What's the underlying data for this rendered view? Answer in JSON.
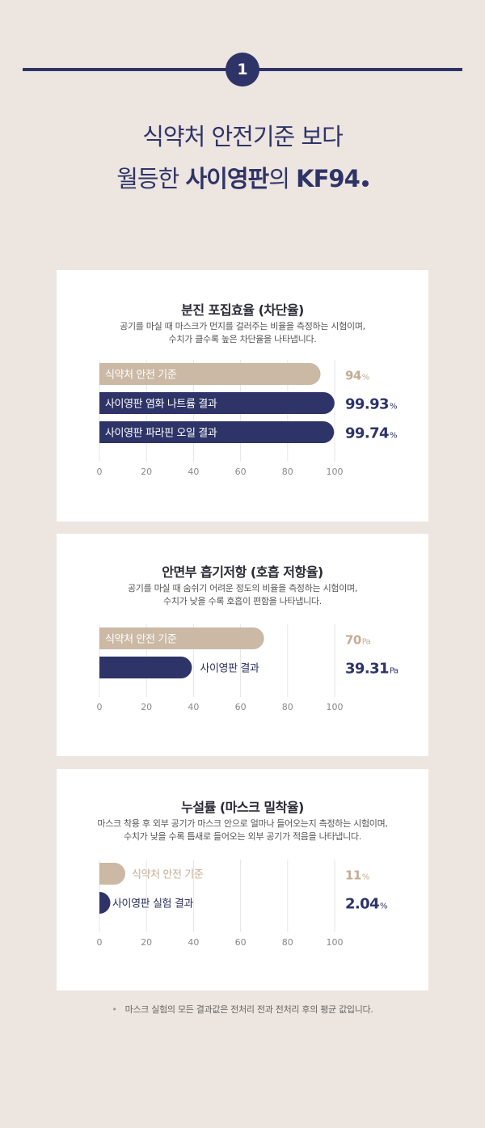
{
  "badge": "1",
  "headline": {
    "line1": "식약처 안전기준 보다",
    "line2_pre": "월등한 ",
    "line2_brand": "사이영판",
    "line2_mid": "의 ",
    "line2_product": "KF94"
  },
  "colors": {
    "navy": "#2e3468",
    "beige": "#cbb9a5",
    "grid": "#e2e2e2",
    "bg": "#ede5df"
  },
  "charts": [
    {
      "title": "분진 포집효율 (차단율)",
      "desc1": "공기를 마실 때 마스크가 먼지를 걸러주는 비율을 측정하는 시험이며,",
      "desc2": "수치가 클수록 높은 차단율을 나타냅니다."
    },
    {
      "title": "안면부 흡기저항 (호흡 저항율)",
      "desc1": "공기를 마실 때 숨쉬기 어려운 정도의 비율을 측정하는 시험이며,",
      "desc2": "수치가 낮을 수록 호흡이 편함을 나타냅니다."
    },
    {
      "title": "누설률 (마스크 밀착율)",
      "desc1": "마스크 착용 후 외부 공기가 마스크 안으로 얼마나 들어오는지 측정하는 시험이며,",
      "desc2": "수치가 낮을 수록 틈새로 들어오는 외부 공기가 적음을 나타냅니다."
    }
  ],
  "chart_data": [
    {
      "type": "bar",
      "title": "분진 포집효율 (차단율)",
      "xlim": [
        0,
        100
      ],
      "ticks": [
        "0",
        "20",
        "40",
        "60",
        "80",
        "100"
      ],
      "grid": true,
      "bars": [
        {
          "label": "식약처 안전 기준",
          "value": 94,
          "display": "94",
          "unit": "%",
          "color": "beige"
        },
        {
          "label": "사이영판 염화 나트륨 결과",
          "value": 99.93,
          "display": "99.93",
          "unit": "%",
          "color": "navy"
        },
        {
          "label": "사이영판 파라핀 오일 결과",
          "value": 99.74,
          "display": "99.74",
          "unit": "%",
          "color": "navy"
        }
      ]
    },
    {
      "type": "bar",
      "title": "안면부 흡기저항 (호흡 저항율)",
      "xlim": [
        0,
        100
      ],
      "ticks": [
        "0",
        "20",
        "40",
        "60",
        "80",
        "100"
      ],
      "grid": true,
      "bars": [
        {
          "label": "식약처 안전 기준",
          "value": 70,
          "display": "70",
          "unit": "Pa",
          "color": "beige"
        },
        {
          "label": "사이영판 결과",
          "value": 39.31,
          "display": "39.31",
          "unit": "Pa",
          "color": "navy"
        }
      ]
    },
    {
      "type": "bar",
      "title": "누설률 (마스크 밀착율)",
      "xlim": [
        0,
        100
      ],
      "ticks": [
        "0",
        "20",
        "40",
        "60",
        "80",
        "100"
      ],
      "grid": true,
      "bars": [
        {
          "label": "식약처 안전 기준",
          "value": 11,
          "display": "11",
          "unit": "%",
          "color": "beige"
        },
        {
          "label": "사이영판 실험 결과",
          "value": 2.04,
          "display": "2.04",
          "unit": "%",
          "color": "navy"
        }
      ]
    }
  ],
  "note": "마스크 실험의 모든 결과값은 전처리 전과 전처리 후의 평균 값입니다."
}
